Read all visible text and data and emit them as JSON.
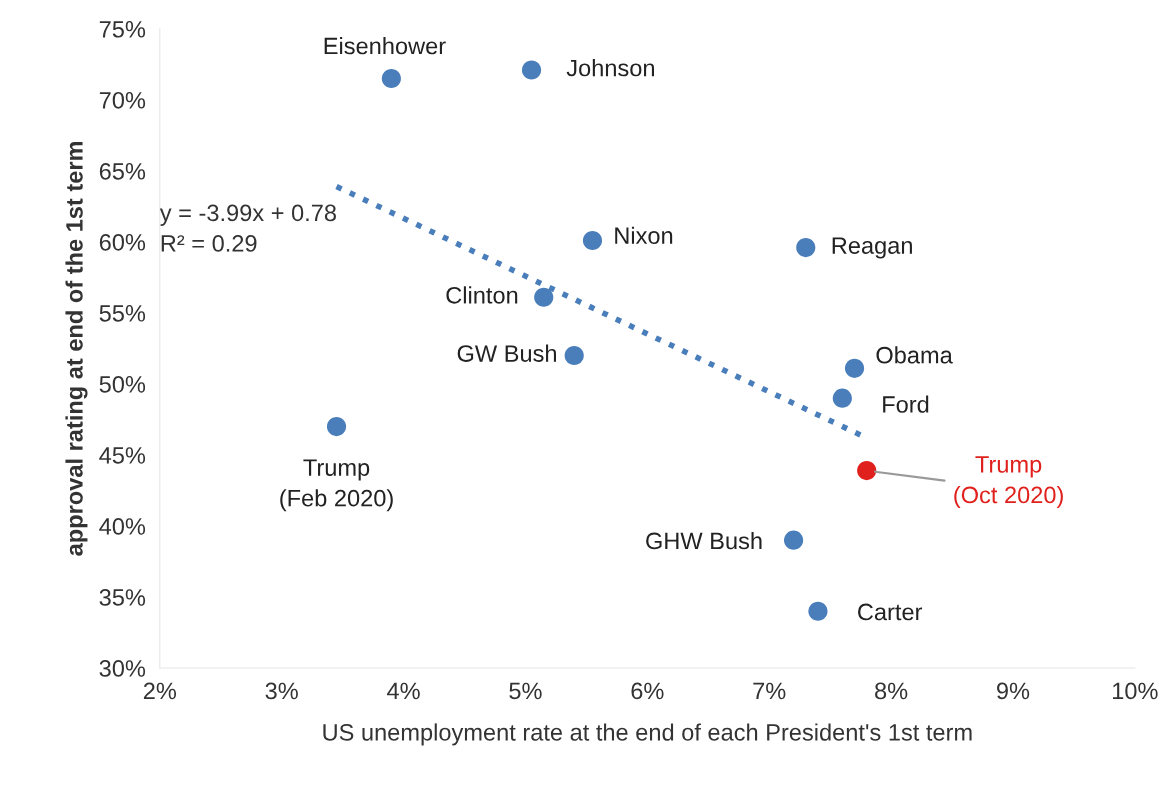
{
  "chart_data": {
    "type": "scatter",
    "xlabel": "US unemployment rate at the end of each President's 1st term",
    "ylabel": "approval rating at end of the 1st term",
    "xlim": [
      2,
      10
    ],
    "ylim": [
      30,
      75
    ],
    "xticks": [
      {
        "value": 2,
        "label": "2%"
      },
      {
        "value": 3,
        "label": "3%"
      },
      {
        "value": 4,
        "label": "4%"
      },
      {
        "value": 5,
        "label": "5%"
      },
      {
        "value": 6,
        "label": "6%"
      },
      {
        "value": 7,
        "label": "7%"
      },
      {
        "value": 8,
        "label": "8%"
      },
      {
        "value": 9,
        "label": "9%"
      },
      {
        "value": 10,
        "label": "10%"
      }
    ],
    "yticks": [
      {
        "value": 30,
        "label": "30%"
      },
      {
        "value": 35,
        "label": "35%"
      },
      {
        "value": 40,
        "label": "40%"
      },
      {
        "value": 45,
        "label": "45%"
      },
      {
        "value": 50,
        "label": "50%"
      },
      {
        "value": 55,
        "label": "55%"
      },
      {
        "value": 60,
        "label": "60%"
      },
      {
        "value": 65,
        "label": "65%"
      },
      {
        "value": 70,
        "label": "70%"
      },
      {
        "value": 75,
        "label": "75%"
      }
    ],
    "grid": false,
    "legend": false,
    "series": [
      {
        "type": "scatter",
        "color": "#4a7ebb",
        "marker": "circle",
        "x": [
          3.9,
          5.05,
          5.55,
          7.3,
          5.15,
          5.4,
          7.7,
          7.6,
          3.45,
          7.8,
          7.2,
          7.4
        ],
        "values": [
          71.5,
          72.1,
          60.1,
          59.6,
          56.1,
          52.0,
          51.1,
          49.0,
          47.0,
          43.9,
          39.0,
          34.0
        ],
        "colors": [
          "#4a7ebb",
          "#4a7ebb",
          "#4a7ebb",
          "#4a7ebb",
          "#4a7ebb",
          "#4a7ebb",
          "#4a7ebb",
          "#4a7ebb",
          "#4a7ebb",
          "#e0201c",
          "#4a7ebb",
          "#4a7ebb"
        ],
        "value_labels": [
          "Eisenhower",
          "Johnson",
          "Nixon",
          "Reagan",
          "Clinton",
          "GW Bush",
          "Obama",
          "Ford",
          "Trump\n(Feb 2020)",
          "Trump\n(Oct 2020)",
          "GHW Bush",
          "Carter"
        ]
      },
      {
        "type": "line",
        "marker": "none",
        "color": "#4a7ebb",
        "line_style": "dotted",
        "x": [
          3.45,
          7.75
        ],
        "values": [
          63.9,
          46.4
        ]
      }
    ],
    "annotations": [
      "y = -3.99x + 0.78\nR² = 0.29"
    ]
  }
}
